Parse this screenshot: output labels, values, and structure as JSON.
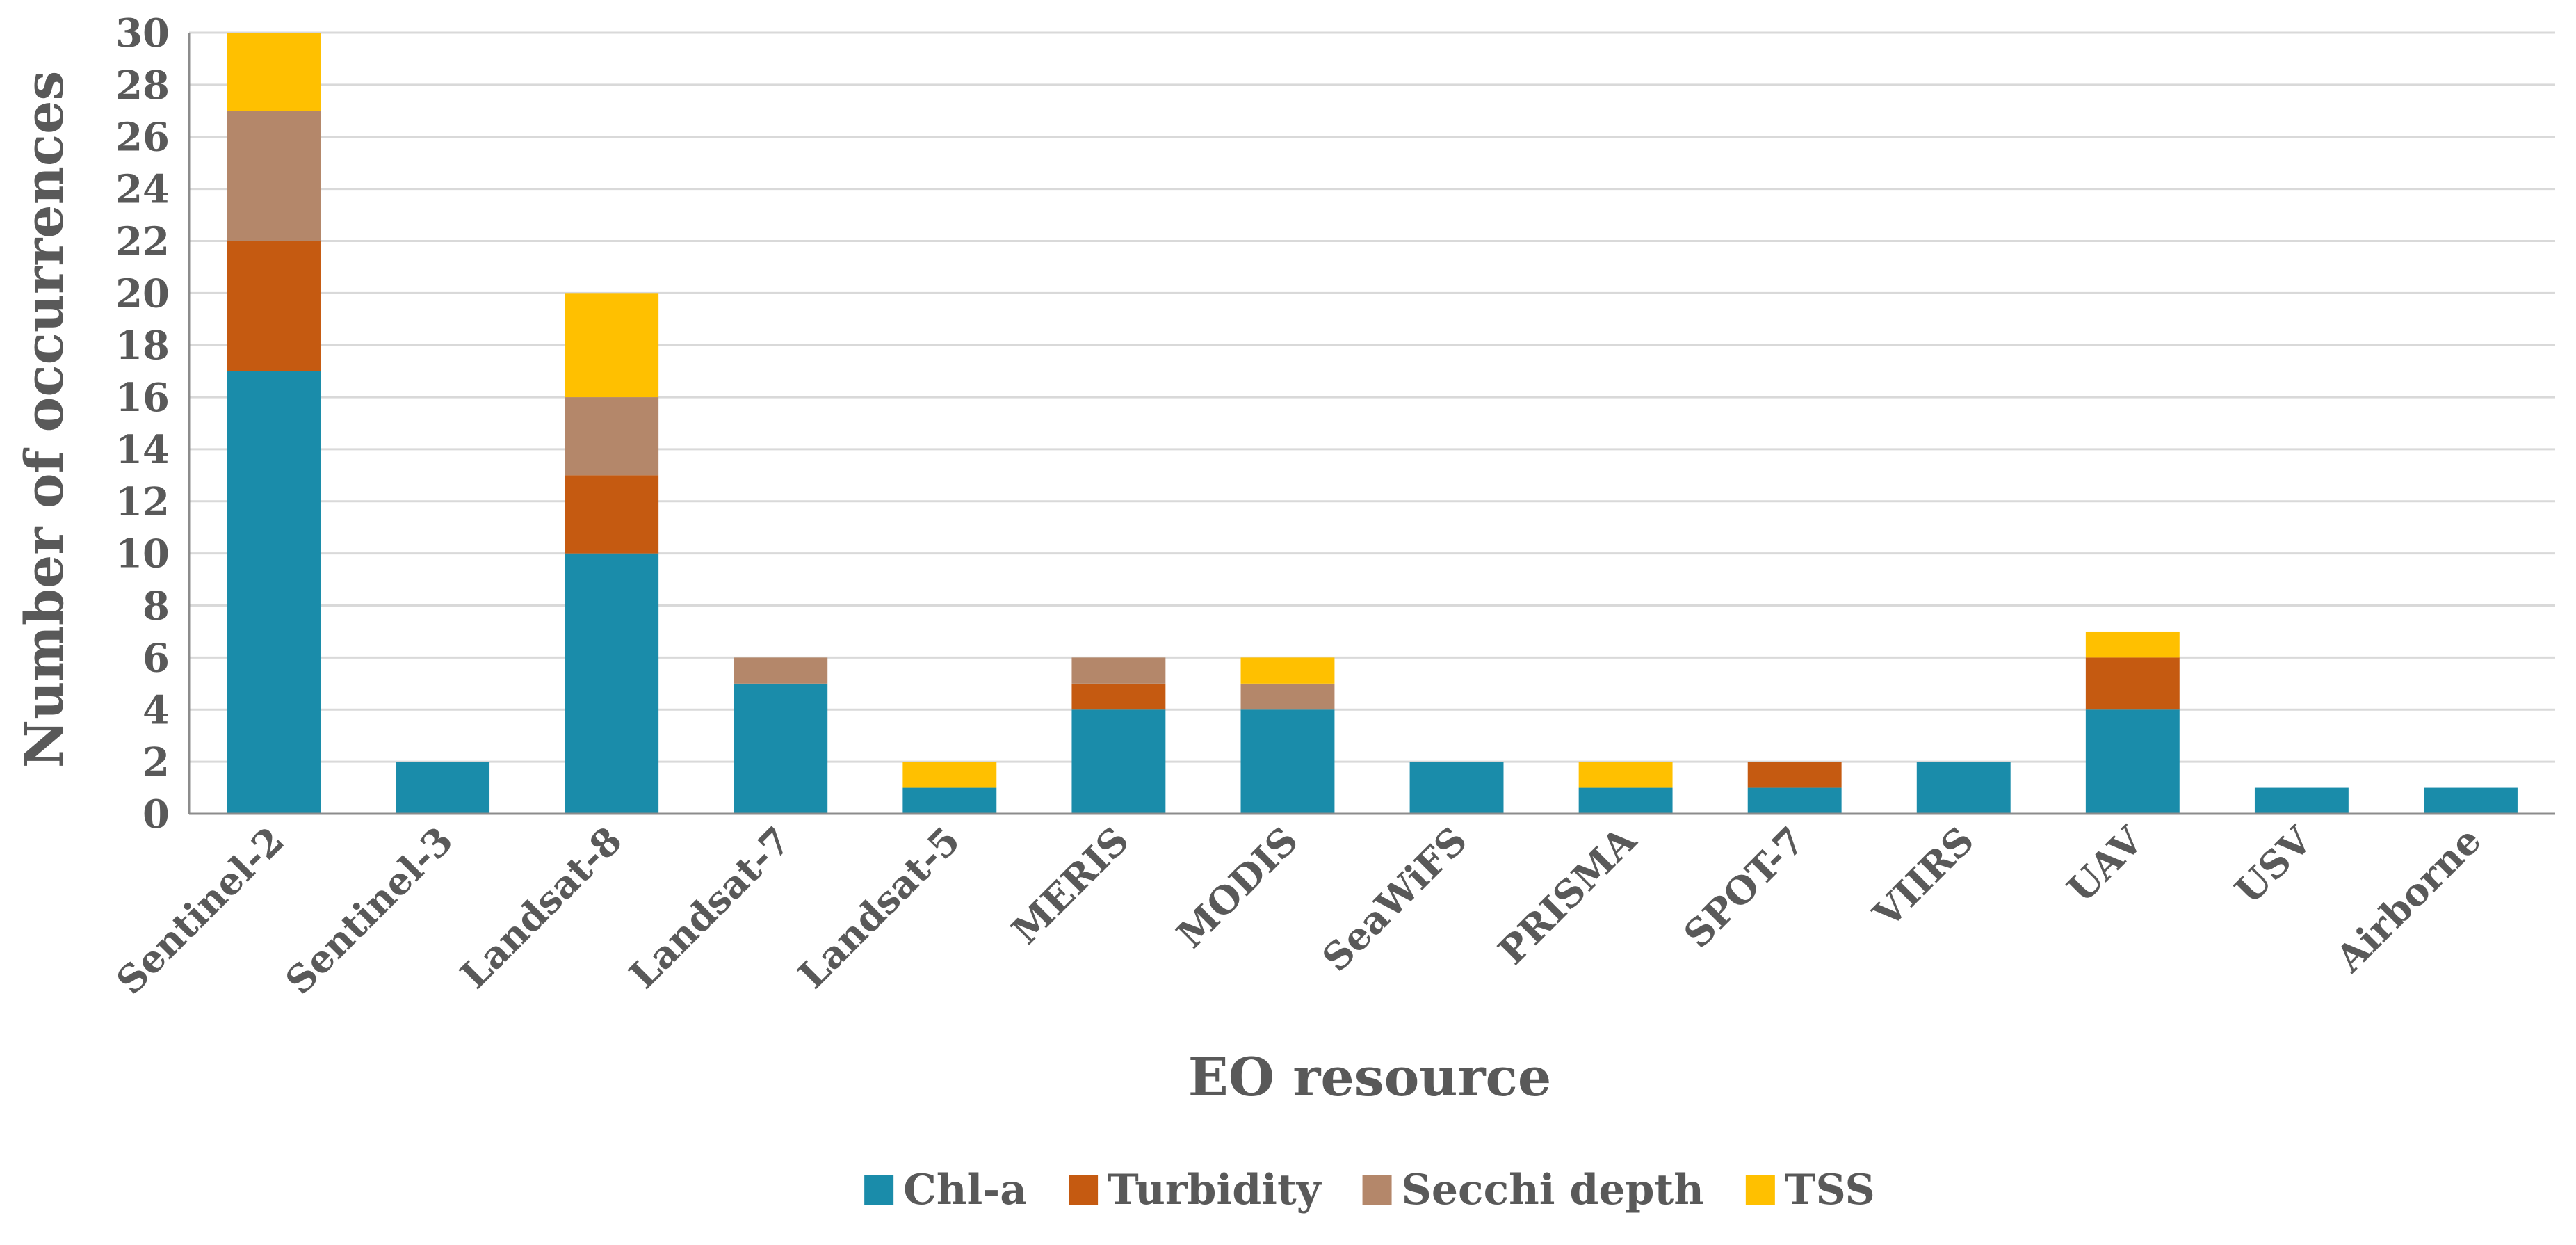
{
  "chart_data": {
    "type": "bar",
    "stacked": true,
    "title": "",
    "xlabel": "EO resource",
    "ylabel": "Number of occurrences",
    "ylim": [
      0,
      30
    ],
    "y_tick_step": 2,
    "grid": true,
    "legend_position": "bottom",
    "categories": [
      "Sentinel-2",
      "Sentinel-3",
      "Landsat-8",
      "Landsat-7",
      "Landsat-5",
      "MERIS",
      "MODIS",
      "SeaWiFS",
      "PRISMA",
      "SPOT-7",
      "VIIRS",
      "UAV",
      "USV",
      "Airborne"
    ],
    "series": [
      {
        "name": "Chl-a",
        "color": "#1A8CAA",
        "values": [
          17,
          2,
          10,
          5,
          1,
          4,
          4,
          2,
          1,
          1,
          2,
          4,
          1,
          1
        ]
      },
      {
        "name": "Turbidity",
        "color": "#C55A11",
        "values": [
          5,
          0,
          3,
          0,
          0,
          1,
          0,
          0,
          0,
          1,
          0,
          2,
          0,
          0
        ]
      },
      {
        "name": "Secchi depth",
        "color": "#B4876A",
        "values": [
          5,
          0,
          3,
          1,
          0,
          1,
          1,
          0,
          0,
          0,
          0,
          0,
          0,
          0
        ]
      },
      {
        "name": "TSS",
        "color": "#FFC000",
        "values": [
          3,
          0,
          4,
          0,
          1,
          0,
          1,
          0,
          1,
          0,
          0,
          1,
          0,
          0
        ]
      }
    ]
  }
}
